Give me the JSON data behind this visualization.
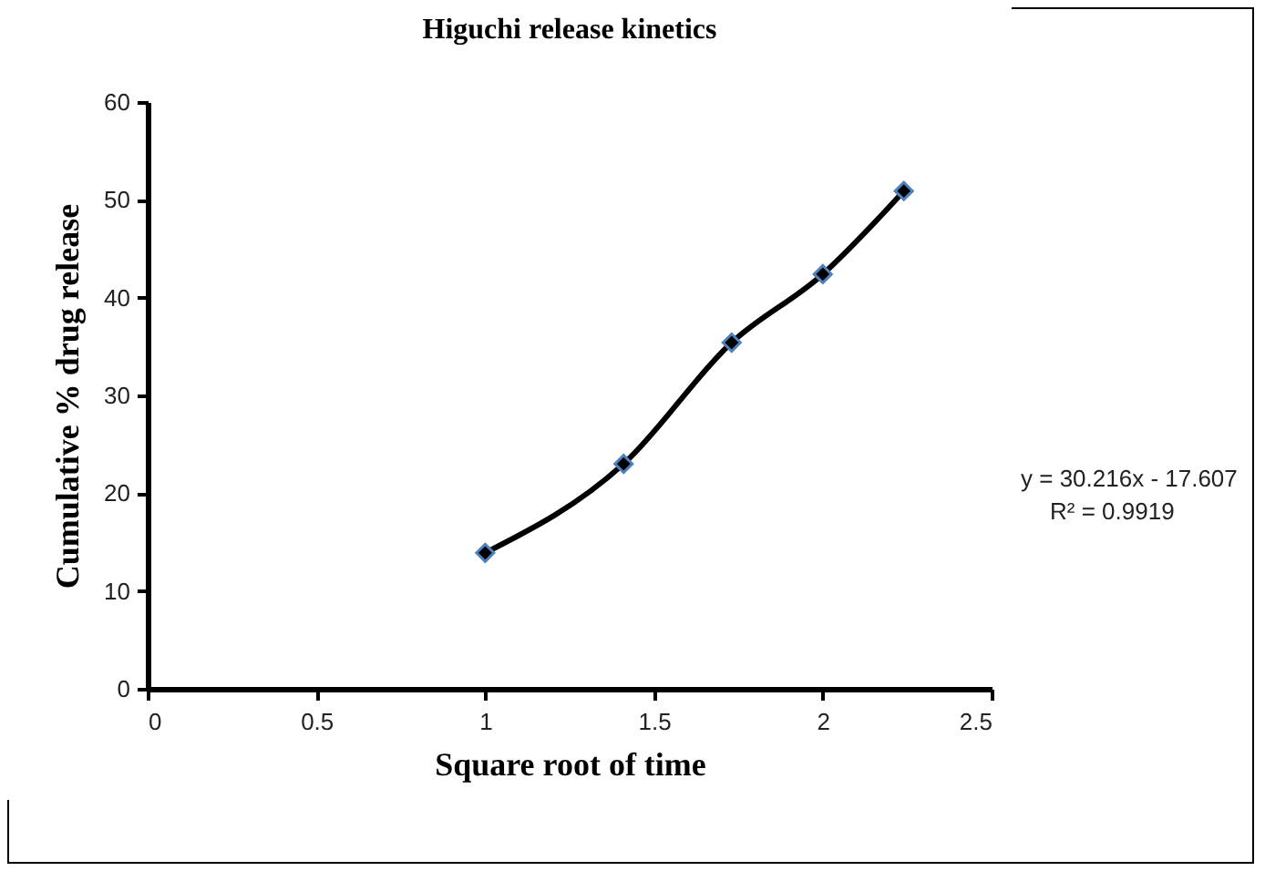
{
  "chart_data": {
    "type": "line",
    "title": "Higuchi release kinetics",
    "xlabel": "Square root of time",
    "ylabel": "Cumulative % drug release",
    "x": [
      1,
      1.41,
      1.73,
      2,
      2.24
    ],
    "series": [
      {
        "color": "#000000",
        "values": [
          13.9,
          23.0,
          35.4,
          42.4,
          50.9
        ]
      }
    ],
    "xlim": [
      0,
      2.5
    ],
    "xticks": [
      0,
      0.5,
      1,
      1.5,
      2,
      2.5
    ],
    "ylim": [
      0,
      60
    ],
    "yticks": [
      0,
      10,
      20,
      30,
      40,
      50,
      60
    ],
    "grid": false,
    "legend": false,
    "marker": "diamond",
    "line_style": "solid",
    "annotations": [
      "y = 30.216x - 17.607",
      "R² = 0.9919"
    ]
  }
}
